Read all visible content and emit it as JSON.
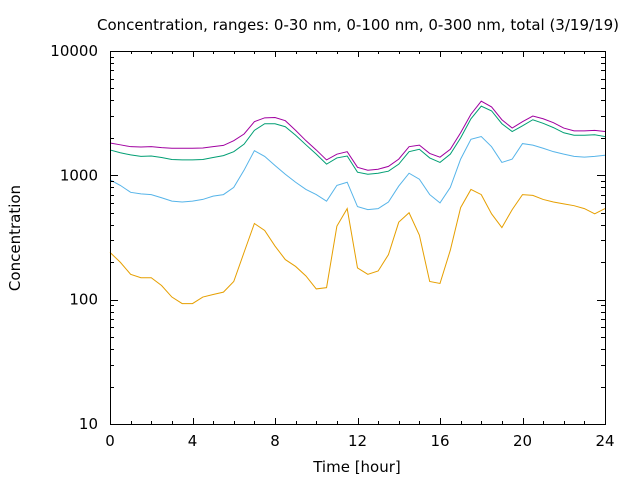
{
  "chart_data": {
    "type": "line",
    "title": "Concentration, ranges: 0-30 nm, 0-100 nm, 0-300 nm, total (3/19/19)",
    "xlabel": "Time [hour]",
    "ylabel": "Concentration",
    "xlim": [
      0,
      24
    ],
    "ylim": [
      10,
      10000
    ],
    "yscale": "log",
    "grid": false,
    "legend": "none",
    "x_ticks": [
      0,
      4,
      8,
      12,
      16,
      20,
      24
    ],
    "x_tick_labels": [
      "0",
      "4",
      "8",
      "12",
      "16",
      "20",
      "24"
    ],
    "y_ticks": [
      10,
      100,
      1000,
      10000
    ],
    "y_tick_labels": [
      "10",
      "100",
      "1000",
      "10000"
    ],
    "x": [
      0,
      0.5,
      1,
      1.5,
      2,
      2.5,
      3,
      3.5,
      4,
      4.5,
      5,
      5.5,
      6,
      6.5,
      7,
      7.5,
      8,
      8.5,
      9,
      9.5,
      10,
      10.5,
      11,
      11.5,
      12,
      12.5,
      13,
      13.5,
      14,
      14.5,
      15,
      15.5,
      16,
      16.5,
      17,
      17.5,
      18,
      18.5,
      19,
      19.5,
      20,
      20.5,
      21,
      21.5,
      22,
      22.5,
      23,
      23.5,
      24
    ],
    "series": [
      {
        "color": "#a000a0",
        "values": [
          1820,
          1760,
          1700,
          1690,
          1700,
          1670,
          1650,
          1650,
          1650,
          1660,
          1700,
          1740,
          1900,
          2150,
          2700,
          2900,
          2920,
          2750,
          2300,
          1900,
          1600,
          1330,
          1480,
          1550,
          1160,
          1100,
          1120,
          1180,
          1350,
          1700,
          1750,
          1500,
          1400,
          1620,
          2200,
          3100,
          3950,
          3550,
          2800,
          2400,
          2700,
          3000,
          2850,
          2650,
          2400,
          2280,
          2280,
          2300,
          2250
        ]
      },
      {
        "color": "#009e73",
        "values": [
          1600,
          1520,
          1460,
          1420,
          1430,
          1390,
          1340,
          1330,
          1330,
          1340,
          1390,
          1440,
          1550,
          1780,
          2300,
          2600,
          2600,
          2460,
          2100,
          1760,
          1480,
          1230,
          1380,
          1430,
          1060,
          1020,
          1040,
          1080,
          1230,
          1550,
          1620,
          1380,
          1270,
          1480,
          2000,
          2850,
          3600,
          3300,
          2600,
          2250,
          2500,
          2800,
          2620,
          2420,
          2200,
          2100,
          2100,
          2120,
          2050
        ]
      },
      {
        "color": "#56b4e9",
        "values": [
          920,
          830,
          730,
          710,
          700,
          660,
          620,
          610,
          620,
          640,
          680,
          700,
          800,
          1100,
          1580,
          1420,
          1200,
          1020,
          880,
          770,
          700,
          620,
          830,
          880,
          560,
          530,
          540,
          610,
          820,
          1040,
          930,
          700,
          600,
          800,
          1350,
          1950,
          2050,
          1700,
          1270,
          1350,
          1800,
          1750,
          1650,
          1550,
          1480,
          1420,
          1400,
          1420,
          1450
        ]
      },
      {
        "color": "#e69f00",
        "values": [
          240,
          200,
          160,
          150,
          150,
          130,
          105,
          93,
          93,
          105,
          110,
          115,
          140,
          240,
          410,
          360,
          270,
          210,
          185,
          155,
          122,
          125,
          390,
          540,
          180,
          160,
          170,
          230,
          420,
          500,
          330,
          140,
          135,
          250,
          550,
          770,
          700,
          490,
          380,
          530,
          700,
          690,
          640,
          610,
          590,
          570,
          540,
          490,
          540
        ]
      }
    ]
  }
}
